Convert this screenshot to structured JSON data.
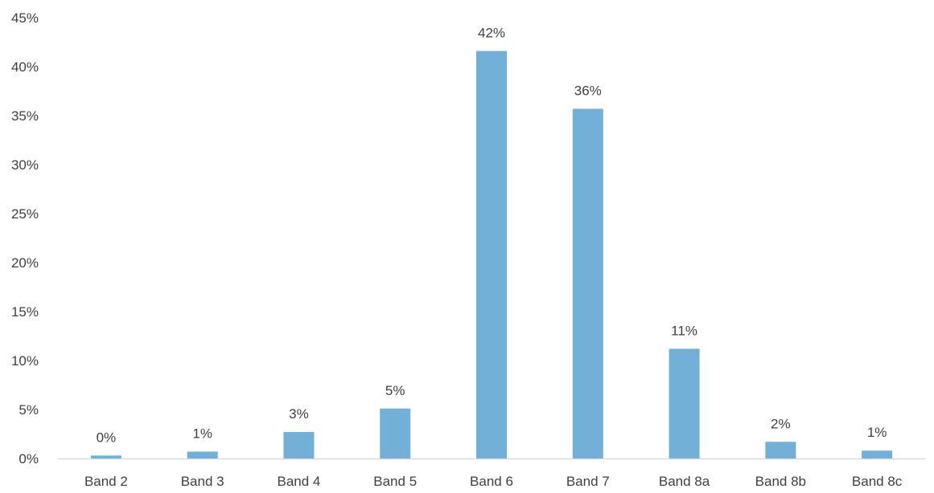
{
  "chart_data": {
    "type": "bar",
    "categories": [
      "Band 2",
      "Band 3",
      "Band 4",
      "Band 5",
      "Band 6",
      "Band 7",
      "Band 8a",
      "Band 8b",
      "Band 8c"
    ],
    "values": [
      0.3,
      0.7,
      2.7,
      5.1,
      41.6,
      35.7,
      11.2,
      1.7,
      0.8
    ],
    "data_labels": [
      "0%",
      "1%",
      "3%",
      "5%",
      "42%",
      "36%",
      "11%",
      "2%",
      "1%"
    ],
    "ylim": [
      0,
      45
    ],
    "yticks": [
      0,
      5,
      10,
      15,
      20,
      25,
      30,
      35,
      40,
      45
    ],
    "ytick_labels": [
      "0%",
      "5%",
      "10%",
      "15%",
      "20%",
      "25%",
      "30%",
      "35%",
      "40%",
      "45%"
    ],
    "grid": false,
    "legend": "none",
    "bar_color": "#72b0d8",
    "axis_color": "#d9d9d9",
    "text_color": "#404040"
  }
}
